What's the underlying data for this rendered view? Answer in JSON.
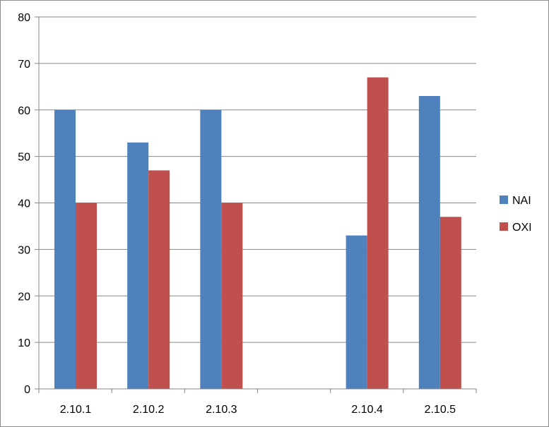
{
  "chart_data": {
    "type": "bar",
    "categories": [
      "2.10.1",
      "2.10.2",
      "2.10.3",
      "",
      "2.10.4",
      "2.10.5"
    ],
    "series": [
      {
        "name": "NAI",
        "color": "#4F81BD",
        "values": [
          60,
          53,
          60,
          null,
          33,
          63
        ]
      },
      {
        "name": "OXI",
        "color": "#C0504D",
        "values": [
          40,
          47,
          40,
          null,
          67,
          37
        ]
      }
    ],
    "y_ticks": [
      "0",
      "10",
      "20",
      "30",
      "40",
      "50",
      "60",
      "70",
      "80"
    ],
    "ylim": [
      0,
      80
    ],
    "grid": true,
    "legend_position": "right"
  }
}
